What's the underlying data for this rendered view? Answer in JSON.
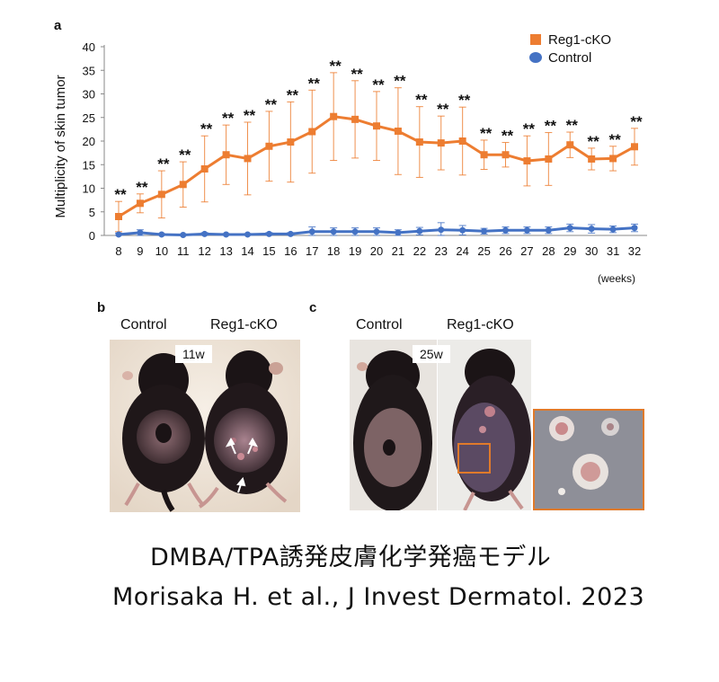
{
  "panels": {
    "a": "a",
    "b": "b",
    "c": "c"
  },
  "chart_data": {
    "type": "line",
    "ylabel": "Multiplicity of skin tumor",
    "xlabel": "(weeks)",
    "ylim": [
      0,
      40
    ],
    "yticks": [
      0,
      5,
      10,
      15,
      20,
      25,
      30,
      35,
      40
    ],
    "x": [
      8,
      9,
      10,
      11,
      12,
      13,
      14,
      15,
      16,
      17,
      18,
      19,
      20,
      21,
      22,
      23,
      24,
      25,
      26,
      27,
      28,
      29,
      30,
      31,
      32
    ],
    "legend_position": "top-right",
    "series": [
      {
        "name": "Reg1-cKO",
        "color": "#ed7d31",
        "marker": "square",
        "values": [
          4.0,
          6.8,
          8.7,
          10.8,
          14.1,
          17.1,
          16.3,
          18.9,
          19.8,
          22.0,
          25.2,
          24.6,
          23.2,
          22.1,
          19.8,
          19.6,
          20.0,
          17.1,
          17.1,
          15.8,
          16.2,
          19.2,
          16.2,
          16.3,
          18.8
        ],
        "errors": [
          3.2,
          2.0,
          5.0,
          4.8,
          7.0,
          6.3,
          7.7,
          7.4,
          8.5,
          8.8,
          9.3,
          8.2,
          7.3,
          9.2,
          7.5,
          5.7,
          7.2,
          3.1,
          2.6,
          5.3,
          5.6,
          2.7,
          2.3,
          2.6,
          3.9
        ],
        "significance": [
          "**",
          "**",
          "**",
          "**",
          "**",
          "**",
          "**",
          "**",
          "**",
          "**",
          "**",
          "**",
          "**",
          "**",
          "**",
          "**",
          "**",
          "**",
          "**",
          "**",
          "**",
          "**",
          "**",
          "**",
          "**"
        ]
      },
      {
        "name": "Control",
        "color": "#4472c4",
        "marker": "circle",
        "values": [
          0.2,
          0.6,
          0.2,
          0.1,
          0.3,
          0.2,
          0.2,
          0.3,
          0.3,
          0.8,
          0.8,
          0.8,
          0.8,
          0.6,
          0.9,
          1.2,
          1.1,
          0.9,
          1.1,
          1.1,
          1.1,
          1.6,
          1.4,
          1.3,
          1.6
        ],
        "errors": [
          0.3,
          0.6,
          0.2,
          0.2,
          0.3,
          0.2,
          0.2,
          0.3,
          0.3,
          1.0,
          0.8,
          0.8,
          0.8,
          0.6,
          0.8,
          1.5,
          1.0,
          0.6,
          0.7,
          0.7,
          0.7,
          0.8,
          0.9,
          0.7,
          0.8
        ]
      }
    ]
  },
  "panel_b": {
    "labels": [
      "Control",
      "Reg1-cKO"
    ],
    "time": "11w"
  },
  "panel_c": {
    "labels": [
      "Control",
      "Reg1-cKO"
    ],
    "time": "25w"
  },
  "caption": {
    "line1": "DMBA/TPA誘発皮膚化学発癌モデル",
    "line2": "Morisaka H. et al.,  J Invest Dermatol. 2023"
  }
}
